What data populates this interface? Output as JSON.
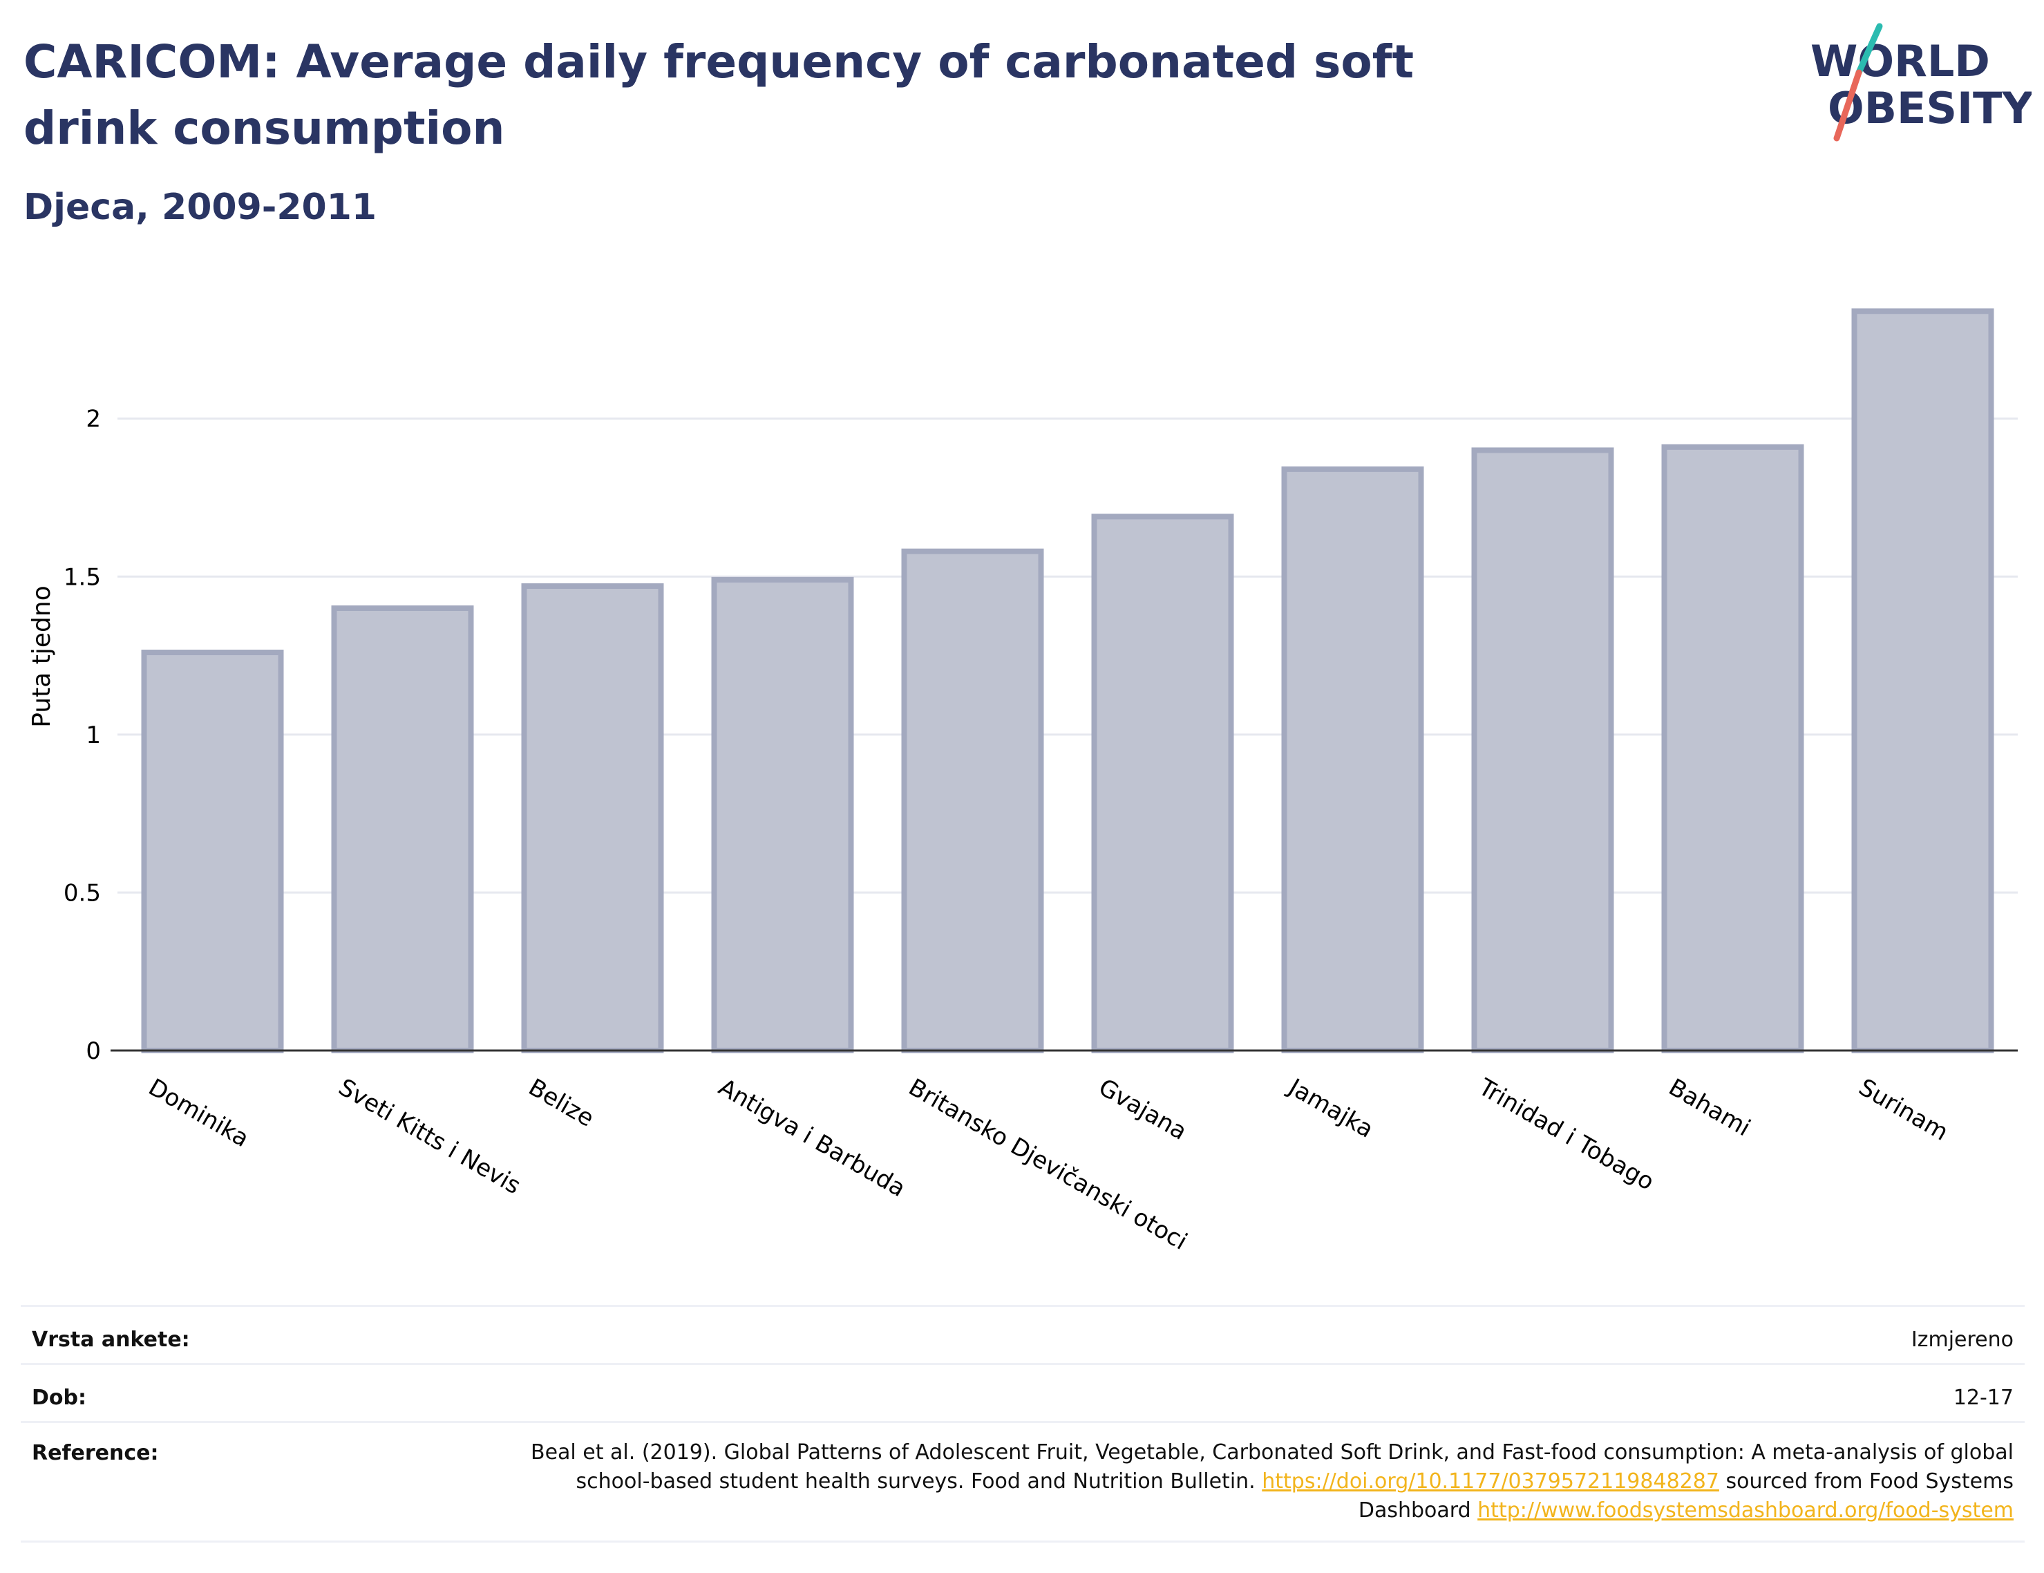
{
  "header": {
    "title": "CARICOM: Average daily frequency of carbonated soft drink consumption",
    "subtitle": "Djeca, 2009-2011",
    "logo_line1": "WORLD",
    "logo_line2": "OBESITY"
  },
  "colors": {
    "bar_fill": "#bfc3d1",
    "bar_stroke": "#a3a9bf",
    "title": "#2a3563",
    "link": "#f2b41c",
    "logo_teal": "#2bbbb0",
    "logo_coral": "#e8675a"
  },
  "chart_data": {
    "type": "bar",
    "ylabel": "Puta tjedno",
    "xlabel": "",
    "ylim": [
      0,
      2.45
    ],
    "yticks": [
      0,
      0.5,
      1,
      1.5,
      2
    ],
    "ytick_labels": [
      "0",
      "0.5",
      "1",
      "1.5",
      "2"
    ],
    "grid": true,
    "categories": [
      "Dominika",
      "Sveti Kitts i Nevis",
      "Belize",
      "Antigva i Barbuda",
      "Britansko Djevičanski otoci",
      "Gvajana",
      "Jamajka",
      "Trinidad i Tobago",
      "Bahami",
      "Surinam"
    ],
    "values": [
      1.26,
      1.4,
      1.47,
      1.49,
      1.58,
      1.69,
      1.84,
      1.9,
      1.91,
      2.34
    ]
  },
  "meta": {
    "survey_type_label": "Vrsta ankete:",
    "survey_type_value": "Izmjereno",
    "age_label": "Dob:",
    "age_value": "12-17",
    "reference_label": "Reference:",
    "reference_text_1": "Beal et al. (2019). Global Patterns of Adolescent Fruit, Vegetable, Carbonated Soft Drink, and Fast-food consumption: A meta-analysis of global school-based student health surveys. Food and Nutrition Bulletin. ",
    "reference_link_1": "https://doi.org/10.1177/0379572119848287",
    "reference_text_2": " sourced from Food Systems Dashboard ",
    "reference_link_2": "http://www.foodsystemsdashboard.org/food-system"
  }
}
